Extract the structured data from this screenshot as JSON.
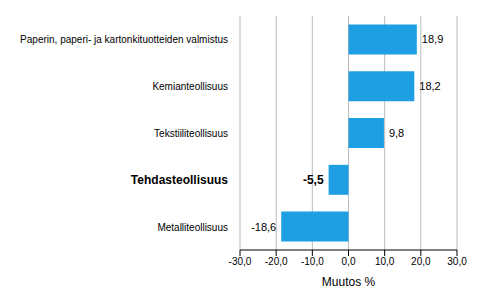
{
  "chart_data": {
    "type": "bar",
    "orientation": "horizontal",
    "categories": [
      "Paperin, paperi- ja kartonkituotteiden valmistus",
      "Kemianteollisuus",
      "Tekstiiliteollisuus",
      "Tehdasteollisuus",
      "Metalliteollisuus"
    ],
    "values": [
      18.9,
      18.2,
      9.8,
      -5.5,
      -18.6
    ],
    "value_labels": [
      "18,9",
      "18,2",
      "9,8",
      "-5,5",
      "-18,6"
    ],
    "data_labels": true,
    "color": "#1e9fe3",
    "x_label": "Muutos %",
    "xlim": [
      -30,
      30
    ],
    "xticks": [
      {
        "value": -30,
        "label": "-30,0"
      },
      {
        "value": -20,
        "label": "-20,0"
      },
      {
        "value": -10,
        "label": "-10,0"
      },
      {
        "value": 0,
        "label": "0,0"
      },
      {
        "value": 10,
        "label": "10,0"
      },
      {
        "value": 20,
        "label": "20,0"
      },
      {
        "value": 30,
        "label": "30,0"
      }
    ],
    "grid": true
  }
}
